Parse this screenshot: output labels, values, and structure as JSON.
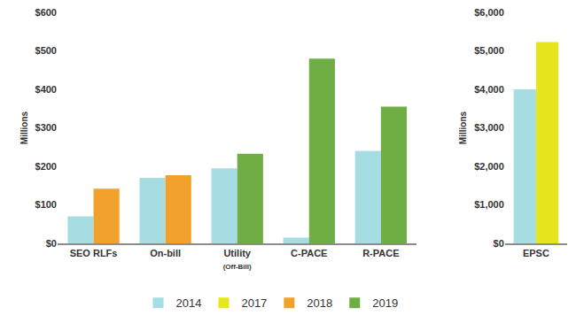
{
  "chart_data": [
    {
      "type": "bar",
      "categories": [
        "SEO RLFs",
        "On-bill",
        "Utility (Off-Bill)",
        "C-PACE",
        "R-PACE"
      ],
      "series": [
        {
          "name": "2014",
          "color": "#a6dde2",
          "values": [
            70,
            170,
            195,
            15,
            240
          ]
        },
        {
          "name": "2017",
          "color": "#e6e61e",
          "values": [
            null,
            null,
            null,
            null,
            null
          ]
        },
        {
          "name": "2018",
          "color": "#f0a22c",
          "values": [
            142,
            177,
            null,
            null,
            null
          ]
        },
        {
          "name": "2019",
          "color": "#6fae45",
          "values": [
            null,
            null,
            233,
            480,
            355
          ]
        }
      ],
      "y_label": "Millions",
      "ylim": [
        0,
        600
      ],
      "yticks": [
        {
          "value": 0,
          "label": "$0"
        },
        {
          "value": 100,
          "label": "$100"
        },
        {
          "value": 200,
          "label": "$200"
        },
        {
          "value": 300,
          "label": "$300"
        },
        {
          "value": 400,
          "label": "$400"
        },
        {
          "value": 500,
          "label": "$500"
        },
        {
          "value": 600,
          "label": "$600"
        }
      ],
      "grid": false,
      "legend": "bottom"
    },
    {
      "type": "bar",
      "categories": [
        "EPSC"
      ],
      "series": [
        {
          "name": "2014",
          "color": "#a6dde2",
          "values": [
            4000
          ]
        },
        {
          "name": "2017",
          "color": "#e6e61e",
          "values": [
            5230
          ]
        },
        {
          "name": "2018",
          "color": "#f0a22c",
          "values": [
            null
          ]
        },
        {
          "name": "2019",
          "color": "#6fae45",
          "values": [
            null
          ]
        }
      ],
      "y_label": "Millions",
      "ylim": [
        0,
        6000
      ],
      "yticks": [
        {
          "value": 0,
          "label": "$0"
        },
        {
          "value": 1000,
          "label": "$1,000"
        },
        {
          "value": 2000,
          "label": "$2,000"
        },
        {
          "value": 3000,
          "label": "$3,000"
        },
        {
          "value": 4000,
          "label": "$4,000"
        },
        {
          "value": 5000,
          "label": "$5,000"
        },
        {
          "value": 6000,
          "label": "$6,000"
        }
      ],
      "grid": false,
      "legend": "bottom"
    }
  ]
}
